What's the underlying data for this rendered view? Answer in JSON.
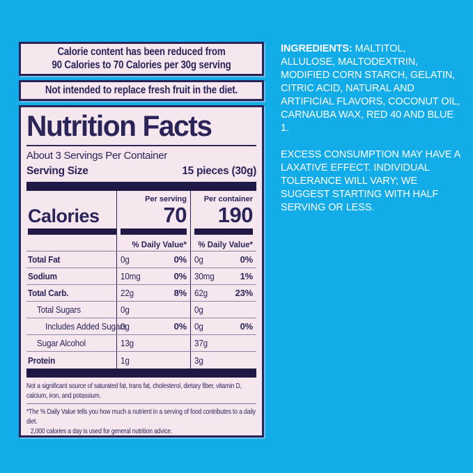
{
  "colors": {
    "background": "#12ace9",
    "panel_bg": "#f6e6ee",
    "ink": "#2a2459",
    "bar": "#201946",
    "white_text": "#ffffff"
  },
  "banners": [
    {
      "lines": [
        "Calorie content has been reduced from",
        "90 Calories to 70 Calories per 30g serving"
      ]
    },
    {
      "lines": [
        "Not intended to replace fresh fruit in the diet."
      ]
    }
  ],
  "nutrition_facts": {
    "title": "Nutrition Facts",
    "servings_per_container": "About 3 Servings Per Container",
    "serving_size_label": "Serving Size",
    "serving_size_value": "15 pieces (30g)",
    "calories": {
      "label": "Calories",
      "per_serving_label": "Per serving",
      "per_serving_value": "70",
      "per_container_label": "Per container",
      "per_container_value": "190",
      "daily_value_header": "% Daily Value*"
    },
    "rows": [
      {
        "label": "Total Fat",
        "serving_amount": "0g",
        "serving_dv": "0%",
        "container_amount": "0g",
        "container_dv": "0%"
      },
      {
        "label": "Sodium",
        "serving_amount": "10mg",
        "serving_dv": "0%",
        "container_amount": "30mg",
        "container_dv": "1%"
      },
      {
        "label": "Total Carb.",
        "serving_amount": "22g",
        "serving_dv": "8%",
        "container_amount": "62g",
        "container_dv": "23%"
      },
      {
        "label": "Total Sugars",
        "serving_amount": "0g",
        "serving_dv": "",
        "container_amount": "0g",
        "container_dv": ""
      },
      {
        "label": "Includes Added Sugars",
        "serving_amount": "0g",
        "serving_dv": "0%",
        "container_amount": "0g",
        "container_dv": "0%"
      },
      {
        "label": "Sugar Alcohol",
        "serving_amount": "13g",
        "serving_dv": "",
        "container_amount": "37g",
        "container_dv": ""
      },
      {
        "label": "Protein",
        "serving_amount": "1g",
        "serving_dv": "",
        "container_amount": "3g",
        "container_dv": ""
      }
    ],
    "footnotes": {
      "not_significant": "Not a significant source of saturated fat, trans fat, cholesterol, dietary fiber, vitamin D, calcium, iron, and potassium.",
      "daily_value_line1": "*The % Daily Value tells you how much a nutrient in a serving of food contributes to a daily diet.",
      "daily_value_line2": "2,000 calories a day is used for general nutrition advice."
    }
  },
  "side_text": {
    "ingredients_label": "INGREDIENTS:",
    "ingredients_body": " MALTITOL, ALLULOSE, MALTODEXTRIN, MODIFIED CORN STARCH, GELATIN, CITRIC ACID, NATURAL AND ARTIFICIAL FLAVORS, COCONUT OIL, CARNAUBA WAX, RED 40 AND BLUE 1.",
    "warning": "EXCESS CONSUMPTION MAY HAVE A LAXATIVE EFFECT. INDIVIDUAL TOLERANCE WILL VARY; WE SUGGEST STARTING WITH HALF SERVING OR LESS."
  }
}
